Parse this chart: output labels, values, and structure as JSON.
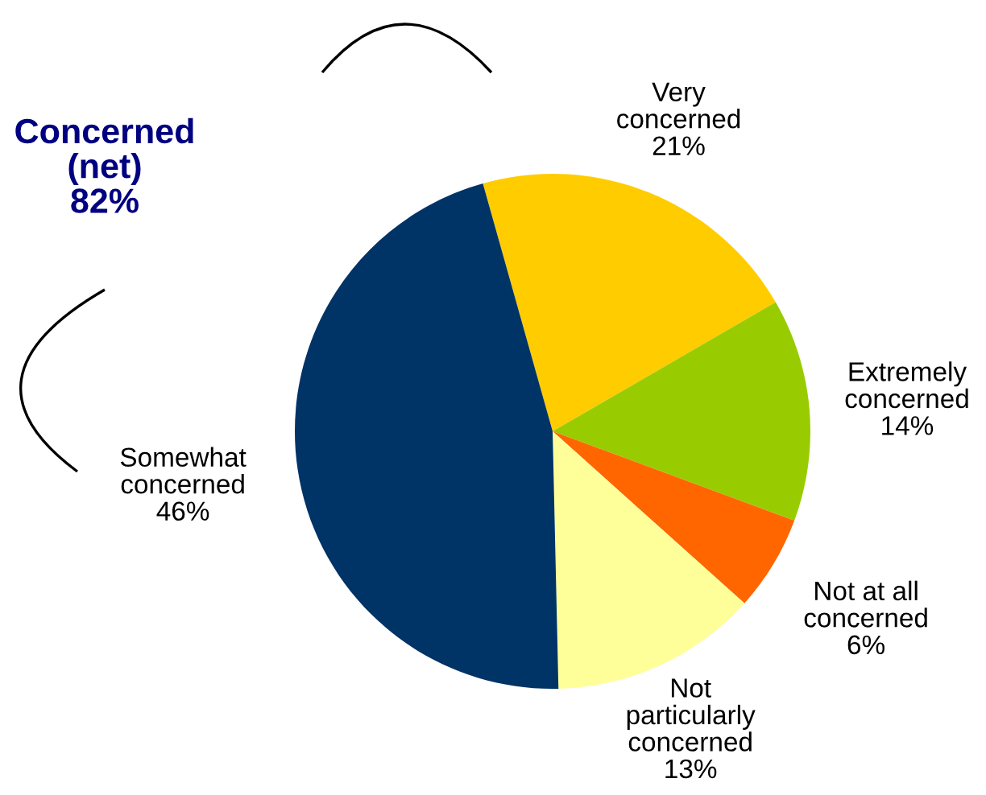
{
  "chart_data": {
    "type": "pie",
    "categories": [
      "Very\nconcerned",
      "Extremely\nconcerned",
      "Not at all\nconcerned",
      "Not\nparticularly\nconcerned",
      "Somewhat\nconcerned"
    ],
    "values": [
      21,
      14,
      6,
      13,
      46
    ],
    "colors": [
      "#ffcc00",
      "#99cc00",
      "#ff6600",
      "#ffff99",
      "#003366"
    ],
    "value_labels": [
      "21%",
      "14%",
      "6%",
      "13%",
      "46%"
    ],
    "annotations": [
      "Concerned\n(net)\n82%"
    ],
    "legend": false
  }
}
